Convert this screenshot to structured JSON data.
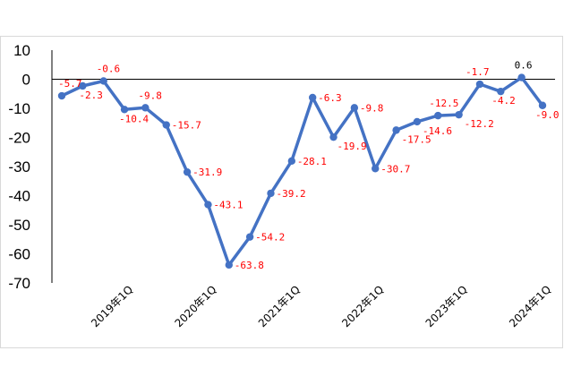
{
  "chart_data": {
    "type": "line",
    "title": "",
    "xlabel": "",
    "ylabel": "",
    "ylim": [
      -70,
      10
    ],
    "yticks": [
      10,
      0,
      -10,
      -20,
      -30,
      -40,
      -50,
      -60,
      -70
    ],
    "grid": false,
    "zero_line": true,
    "x_tick_labels": [
      "2019年1Q",
      "2020年1Q",
      "2021年1Q",
      "2022年1Q",
      "2023年1Q",
      "2024年1Q"
    ],
    "x_tick_index": [
      3,
      7,
      11,
      15,
      19,
      23
    ],
    "series": [
      {
        "color": "#4472c4",
        "values": [
          -5.7,
          -2.3,
          -0.6,
          -10.4,
          -9.8,
          -15.7,
          -31.9,
          -43.1,
          -63.8,
          -54.2,
          -39.2,
          -28.1,
          -6.3,
          -19.9,
          -9.8,
          -30.7,
          -17.5,
          -14.6,
          -12.5,
          -12.2,
          -1.7,
          -4.2,
          0.6,
          -9.0
        ],
        "labels": [
          "-5.7",
          "-2.3",
          "-0.6",
          "-10.4",
          "-9.8",
          "-15.7",
          "-31.9",
          "-43.1",
          "-63.8",
          "-54.2",
          "-39.2",
          "-28.1",
          "-6.3",
          "-19.9",
          "-9.8",
          "-30.7",
          "-17.5",
          "-14.6",
          "-12.5",
          "-12.2",
          "-1.7",
          "-4.2",
          "0.6",
          "-9.0"
        ]
      }
    ],
    "label_colors": {
      "negative": "#ff0000",
      "positive": "#000000"
    }
  }
}
